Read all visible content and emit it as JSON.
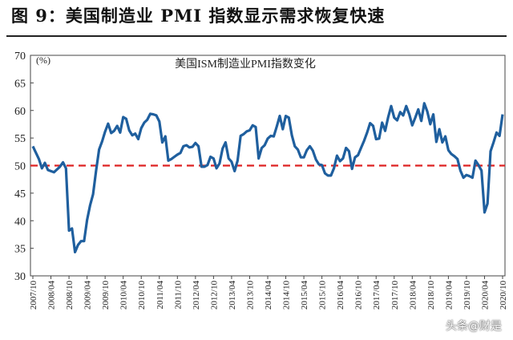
{
  "figure": {
    "title": "图 9：美国制造业 PMI 指数显示需求恢复快速",
    "watermark": "头条@财是"
  },
  "colors": {
    "series": "#1f5f9e",
    "reference": "#dd2222"
  },
  "chart_data": {
    "type": "line",
    "title": "美国ISM制造业PMI指数变化",
    "unit_label": "(%)",
    "ylim": [
      30,
      70
    ],
    "yticks": [
      30,
      35,
      40,
      45,
      50,
      55,
      60,
      65,
      70
    ],
    "xlim": [
      "2007-10",
      "2020-10"
    ],
    "xticks": [
      "2007/10",
      "2008/04",
      "2008/10",
      "2009/04",
      "2009/10",
      "2010/04",
      "2010/10",
      "2011/04",
      "2011/10",
      "2012/04",
      "2012/10",
      "2013/04",
      "2013/10",
      "2014/04",
      "2014/10",
      "2015/04",
      "2015/10",
      "2016/04",
      "2016/10",
      "2017/04",
      "2017/10",
      "2018/04",
      "2018/10",
      "2019/04",
      "2019/10",
      "2020/04",
      "2020/10"
    ],
    "grid": false,
    "reference_line": {
      "y": 50,
      "style": "dashed"
    },
    "series": [
      {
        "x": [
          "2007-10",
          "2007-12",
          "2008-01",
          "2008-02",
          "2008-03",
          "2008-04",
          "2008-05",
          "2008-06",
          "2008-07",
          "2008-08",
          "2008-09",
          "2008-10",
          "2008-11",
          "2008-12",
          "2009-01",
          "2009-02",
          "2009-03",
          "2009-04",
          "2009-05",
          "2009-06",
          "2009-07",
          "2009-08",
          "2009-09",
          "2009-10",
          "2009-11",
          "2009-12",
          "2010-01",
          "2010-02",
          "2010-03",
          "2010-04",
          "2010-05",
          "2010-06",
          "2010-07",
          "2010-08",
          "2010-09",
          "2010-10",
          "2010-11",
          "2010-12",
          "2011-01",
          "2011-02",
          "2011-03",
          "2011-04",
          "2011-05",
          "2011-06",
          "2011-07",
          "2011-08",
          "2011-09",
          "2011-10",
          "2011-11",
          "2011-12",
          "2012-01",
          "2012-02",
          "2012-03",
          "2012-04",
          "2012-05",
          "2012-06",
          "2012-07",
          "2012-08",
          "2012-09",
          "2012-10",
          "2012-11",
          "2012-12",
          "2013-01",
          "2013-02",
          "2013-03",
          "2013-04",
          "2013-05",
          "2013-06",
          "2013-07",
          "2013-08",
          "2013-09",
          "2013-10",
          "2013-11",
          "2013-12",
          "2014-01",
          "2014-02",
          "2014-03",
          "2014-04",
          "2014-05",
          "2014-06",
          "2014-07",
          "2014-08",
          "2014-09",
          "2014-10",
          "2014-11",
          "2014-12",
          "2015-01",
          "2015-02",
          "2015-03",
          "2015-04",
          "2015-05",
          "2015-06",
          "2015-07",
          "2015-08",
          "2015-09",
          "2015-10",
          "2015-11",
          "2015-12",
          "2016-01",
          "2016-02",
          "2016-03",
          "2016-04",
          "2016-05",
          "2016-06",
          "2016-07",
          "2016-08",
          "2016-09",
          "2016-10",
          "2016-11",
          "2016-12",
          "2017-01",
          "2017-02",
          "2017-03",
          "2017-04",
          "2017-05",
          "2017-06",
          "2017-07",
          "2017-08",
          "2017-09",
          "2017-10",
          "2017-11",
          "2017-12",
          "2018-01",
          "2018-02",
          "2018-03",
          "2018-04",
          "2018-05",
          "2018-06",
          "2018-07",
          "2018-08",
          "2018-09",
          "2018-10",
          "2018-11",
          "2018-12",
          "2019-01",
          "2019-02",
          "2019-03",
          "2019-04",
          "2019-05",
          "2019-06",
          "2019-07",
          "2019-08",
          "2019-09",
          "2019-10",
          "2019-11",
          "2019-12",
          "2020-01",
          "2020-02",
          "2020-03",
          "2020-04",
          "2020-05",
          "2020-06",
          "2020-07",
          "2020-08",
          "2020-09",
          "2020-10"
        ],
        "values": [
          53.5,
          51.2,
          49.5,
          50.5,
          49.2,
          49.0,
          48.8,
          49.3,
          49.8,
          50.6,
          49.5,
          38.2,
          38.6,
          34.3,
          35.6,
          36.3,
          36.3,
          40.1,
          42.8,
          44.8,
          49.1,
          52.9,
          54.4,
          56.2,
          57.6,
          55.9,
          56.3,
          57.2,
          56.0,
          58.8,
          58.5,
          56.4,
          55.5,
          55.8,
          54.8,
          56.8,
          57.8,
          58.3,
          59.4,
          59.3,
          59.1,
          58.0,
          54.2,
          55.3,
          50.9,
          51.2,
          51.6,
          52.0,
          52.3,
          53.5,
          53.7,
          53.3,
          53.4,
          54.1,
          53.5,
          49.8,
          49.8,
          50.1,
          51.6,
          51.3,
          49.5,
          50.4,
          53.1,
          54.2,
          51.3,
          50.7,
          49.0,
          50.9,
          55.4,
          55.7,
          56.2,
          56.4,
          57.3,
          57.0,
          51.3,
          53.2,
          53.7,
          54.9,
          55.4,
          55.3,
          57.1,
          59.0,
          56.6,
          59.0,
          58.7,
          55.5,
          53.5,
          52.9,
          51.5,
          51.5,
          52.8,
          53.5,
          52.7,
          51.1,
          50.2,
          50.1,
          48.6,
          48.2,
          48.2,
          49.5,
          51.8,
          50.8,
          51.3,
          53.2,
          52.6,
          49.4,
          51.5,
          51.9,
          53.2,
          54.5,
          56.0,
          57.7,
          57.2,
          54.8,
          54.9,
          57.8,
          56.3,
          58.8,
          60.8,
          58.7,
          58.2,
          59.7,
          59.1,
          60.8,
          59.3,
          57.3,
          58.7,
          60.2,
          58.1,
          61.3,
          59.8,
          57.5,
          59.3,
          54.3,
          56.6,
          54.2,
          55.3,
          52.8,
          52.1,
          51.7,
          51.2,
          49.1,
          47.8,
          48.3,
          48.1,
          47.8,
          50.9,
          50.1,
          49.1,
          41.5,
          43.1,
          52.6,
          54.2,
          56.0,
          55.4,
          59.3
        ]
      }
    ]
  }
}
